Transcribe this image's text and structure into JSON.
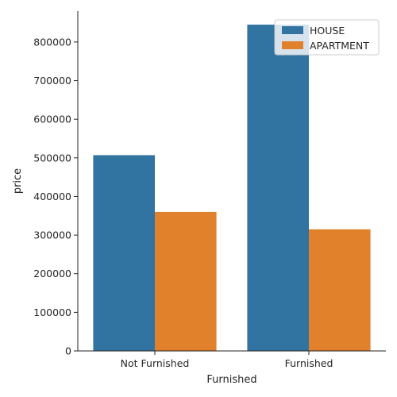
{
  "chart_data": {
    "type": "bar",
    "title": "",
    "xlabel": "Furnished",
    "ylabel": "price",
    "categories": [
      "Not Furnished",
      "Furnished"
    ],
    "series": [
      {
        "name": "HOUSE",
        "values": [
          507000,
          845000
        ],
        "color": "#3274a1"
      },
      {
        "name": "APARTMENT",
        "values": [
          360000,
          315000
        ],
        "color": "#e1812c"
      }
    ],
    "ylim": [
      0,
      880000
    ],
    "yticks": [
      0,
      100000,
      200000,
      300000,
      400000,
      500000,
      600000,
      700000,
      800000
    ],
    "grid": false,
    "legend_position": "top-right"
  }
}
